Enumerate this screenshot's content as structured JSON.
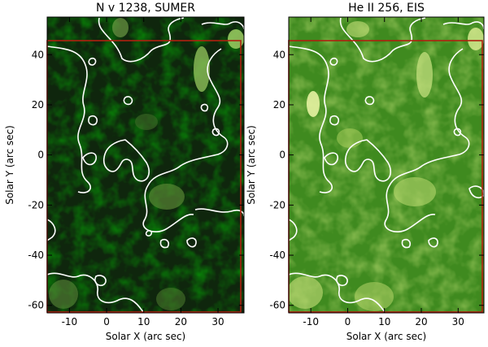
{
  "chart_data": [
    {
      "type": "heatmap",
      "title": "N v 1238, SUMER",
      "xlabel": "Solar X (arc sec)",
      "ylabel": "Solar Y (arc sec)",
      "xlim": [
        -16,
        37
      ],
      "ylim": [
        -63,
        55
      ],
      "x_ticks": [
        -10,
        0,
        10,
        20,
        30
      ],
      "y_ticks": [
        -60,
        -40,
        -20,
        0,
        20,
        40
      ],
      "x_tick_labels": [
        "-10",
        "0",
        "10",
        "20",
        "30"
      ],
      "y_tick_labels": [
        "-60",
        "-40",
        "-20",
        "0",
        "20",
        "40"
      ],
      "colormap": "dark-green",
      "contour_color": "#ffffff",
      "box_color": "#b02010"
    },
    {
      "type": "heatmap",
      "title": "He II 256, EIS",
      "xlabel": "Solar X (arc sec)",
      "ylabel": "Solar Y (arc sec)",
      "xlim": [
        -16,
        37
      ],
      "ylim": [
        -63,
        55
      ],
      "x_ticks": [
        -10,
        0,
        10,
        20,
        30
      ],
      "y_ticks": [
        -60,
        -40,
        -20,
        0,
        20,
        40
      ],
      "x_tick_labels": [
        "-10",
        "0",
        "10",
        "20",
        "30"
      ],
      "y_tick_labels": [
        "-60",
        "-40",
        "-20",
        "0",
        "20",
        "40"
      ],
      "colormap": "bright-green",
      "contour_color": "#ffffff",
      "box_color": "#b02010"
    }
  ]
}
